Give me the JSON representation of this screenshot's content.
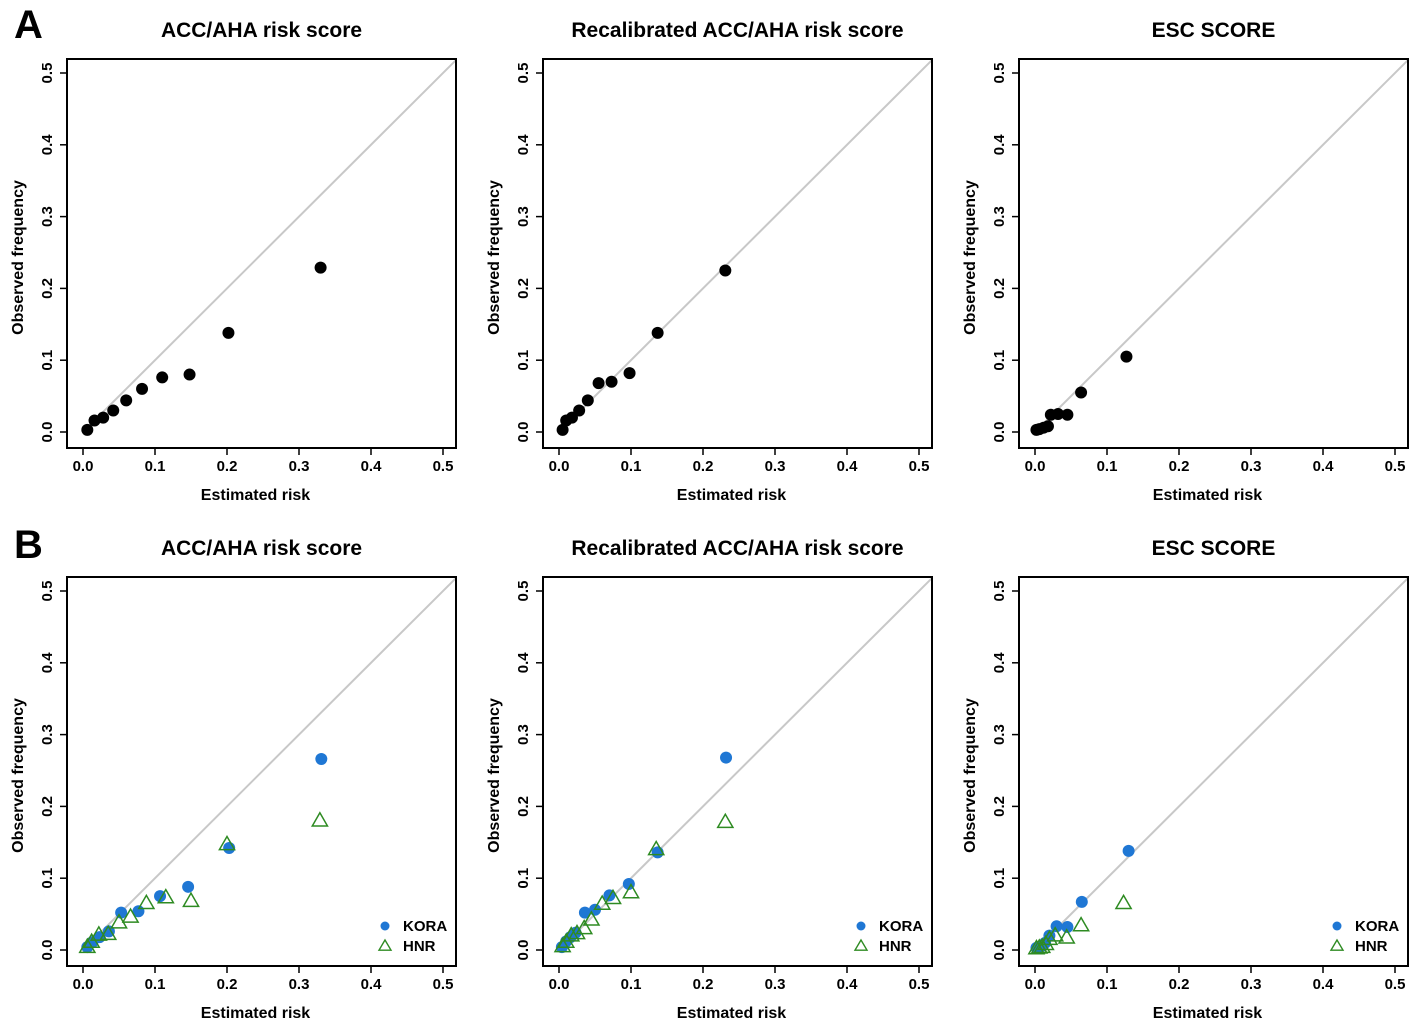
{
  "panel_labels": [
    "A",
    "B"
  ],
  "colors": {
    "series_row_a": "#000000",
    "kora": "#1f77d4",
    "hnr": "#2e8b22",
    "diagonal": "#c8c8c8",
    "frame": "#000000"
  },
  "chart_data": [
    {
      "type": "scatter",
      "title": "ACC/AHA risk score",
      "xlabel": "Estimated risk",
      "ylabel": "Observed frequency",
      "xlim": [
        0,
        0.5
      ],
      "ylim": [
        0,
        0.5
      ],
      "xticks": [
        "0.0",
        "0.1",
        "0.2",
        "0.3",
        "0.4",
        "0.5"
      ],
      "yticks": [
        "0.0",
        "0.1",
        "0.2",
        "0.3",
        "0.4",
        "0.5"
      ],
      "reference_line": "diagonal y = x",
      "grid": false,
      "series": [
        {
          "marker": "filled-circle",
          "color": "#000000",
          "points": [
            [
              0.006,
              0.003
            ],
            [
              0.016,
              0.016
            ],
            [
              0.028,
              0.02
            ],
            [
              0.042,
              0.03
            ],
            [
              0.06,
              0.044
            ],
            [
              0.082,
              0.06
            ],
            [
              0.11,
              0.076
            ],
            [
              0.148,
              0.08
            ],
            [
              0.202,
              0.138
            ],
            [
              0.33,
              0.229
            ]
          ]
        }
      ]
    },
    {
      "type": "scatter",
      "title": "Recalibrated ACC/AHA risk score",
      "xlabel": "Estimated risk",
      "ylabel": "Observed frequency",
      "xlim": [
        0,
        0.5
      ],
      "ylim": [
        0,
        0.5
      ],
      "xticks": [
        "0.0",
        "0.1",
        "0.2",
        "0.3",
        "0.4",
        "0.5"
      ],
      "yticks": [
        "0.0",
        "0.1",
        "0.2",
        "0.3",
        "0.4",
        "0.5"
      ],
      "reference_line": "diagonal y = x",
      "grid": false,
      "series": [
        {
          "marker": "filled-circle",
          "color": "#000000",
          "points": [
            [
              0.005,
              0.003
            ],
            [
              0.01,
              0.016
            ],
            [
              0.018,
              0.02
            ],
            [
              0.028,
              0.03
            ],
            [
              0.04,
              0.044
            ],
            [
              0.055,
              0.068
            ],
            [
              0.073,
              0.07
            ],
            [
              0.098,
              0.082
            ],
            [
              0.137,
              0.138
            ],
            [
              0.231,
              0.225
            ]
          ]
        }
      ]
    },
    {
      "type": "scatter",
      "title": "ESC SCORE",
      "xlabel": "Estimated risk",
      "ylabel": "Observed frequency",
      "xlim": [
        0,
        0.5
      ],
      "ylim": [
        0,
        0.5
      ],
      "xticks": [
        "0.0",
        "0.1",
        "0.2",
        "0.3",
        "0.4",
        "0.5"
      ],
      "yticks": [
        "0.0",
        "0.1",
        "0.2",
        "0.3",
        "0.4",
        "0.5"
      ],
      "reference_line": "diagonal y = x",
      "grid": false,
      "series": [
        {
          "marker": "filled-circle",
          "color": "#000000",
          "points": [
            [
              0.002,
              0.003
            ],
            [
              0.006,
              0.004
            ],
            [
              0.012,
              0.006
            ],
            [
              0.018,
              0.008
            ],
            [
              0.022,
              0.024
            ],
            [
              0.032,
              0.025
            ],
            [
              0.045,
              0.024
            ],
            [
              0.064,
              0.055
            ],
            [
              0.127,
              0.105
            ]
          ]
        }
      ]
    },
    {
      "type": "scatter",
      "title": "ACC/AHA risk score",
      "xlabel": "Estimated risk",
      "ylabel": "Observed frequency",
      "xlim": [
        0,
        0.5
      ],
      "ylim": [
        0,
        0.5
      ],
      "xticks": [
        "0.0",
        "0.1",
        "0.2",
        "0.3",
        "0.4",
        "0.5"
      ],
      "yticks": [
        "0.0",
        "0.1",
        "0.2",
        "0.3",
        "0.4",
        "0.5"
      ],
      "reference_line": "diagonal y = x",
      "grid": false,
      "legend": {
        "placement": "bottom-right"
      },
      "series": [
        {
          "name": "KORA",
          "marker": "filled-circle",
          "color": "#1f77d4",
          "points": [
            [
              0.006,
              0.004
            ],
            [
              0.013,
              0.011
            ],
            [
              0.023,
              0.018
            ],
            [
              0.036,
              0.026
            ],
            [
              0.053,
              0.052
            ],
            [
              0.077,
              0.054
            ],
            [
              0.107,
              0.075
            ],
            [
              0.146,
              0.088
            ],
            [
              0.203,
              0.142
            ],
            [
              0.331,
              0.266
            ]
          ]
        },
        {
          "name": "HNR",
          "marker": "open-triangle",
          "color": "#2e8b22",
          "points": [
            [
              0.006,
              0.004
            ],
            [
              0.012,
              0.011
            ],
            [
              0.022,
              0.021
            ],
            [
              0.035,
              0.022
            ],
            [
              0.05,
              0.038
            ],
            [
              0.066,
              0.046
            ],
            [
              0.088,
              0.065
            ],
            [
              0.115,
              0.073
            ],
            [
              0.15,
              0.068
            ],
            [
              0.2,
              0.147
            ],
            [
              0.329,
              0.18
            ]
          ]
        }
      ]
    },
    {
      "type": "scatter",
      "title": "Recalibrated ACC/AHA risk score",
      "xlabel": "Estimated risk",
      "ylabel": "Observed frequency",
      "xlim": [
        0,
        0.5
      ],
      "ylim": [
        0,
        0.5
      ],
      "xticks": [
        "0.0",
        "0.1",
        "0.2",
        "0.3",
        "0.4",
        "0.5"
      ],
      "yticks": [
        "0.0",
        "0.1",
        "0.2",
        "0.3",
        "0.4",
        "0.5"
      ],
      "reference_line": "diagonal y = x",
      "grid": false,
      "legend": {
        "placement": "bottom-right"
      },
      "series": [
        {
          "name": "KORA",
          "marker": "filled-circle",
          "color": "#1f77d4",
          "points": [
            [
              0.004,
              0.004
            ],
            [
              0.01,
              0.012
            ],
            [
              0.016,
              0.018
            ],
            [
              0.023,
              0.024
            ],
            [
              0.036,
              0.052
            ],
            [
              0.05,
              0.056
            ],
            [
              0.07,
              0.076
            ],
            [
              0.097,
              0.092
            ],
            [
              0.137,
              0.136
            ],
            [
              0.232,
              0.268
            ]
          ]
        },
        {
          "name": "HNR",
          "marker": "open-triangle",
          "color": "#2e8b22",
          "points": [
            [
              0.005,
              0.005
            ],
            [
              0.01,
              0.011
            ],
            [
              0.017,
              0.02
            ],
            [
              0.025,
              0.023
            ],
            [
              0.035,
              0.03
            ],
            [
              0.045,
              0.042
            ],
            [
              0.06,
              0.064
            ],
            [
              0.075,
              0.072
            ],
            [
              0.1,
              0.08
            ],
            [
              0.135,
              0.14
            ],
            [
              0.231,
              0.178
            ]
          ]
        }
      ]
    },
    {
      "type": "scatter",
      "title": "ESC SCORE",
      "xlabel": "Estimated risk",
      "ylabel": "Observed frequency",
      "xlim": [
        0,
        0.5
      ],
      "ylim": [
        0,
        0.5
      ],
      "xticks": [
        "0.0",
        "0.1",
        "0.2",
        "0.3",
        "0.4",
        "0.5"
      ],
      "yticks": [
        "0.0",
        "0.1",
        "0.2",
        "0.3",
        "0.4",
        "0.5"
      ],
      "reference_line": "diagonal y = x",
      "grid": false,
      "legend": {
        "placement": "bottom-right"
      },
      "series": [
        {
          "name": "KORA",
          "marker": "filled-circle",
          "color": "#1f77d4",
          "points": [
            [
              0.002,
              0.003
            ],
            [
              0.005,
              0.004
            ],
            [
              0.01,
              0.006
            ],
            [
              0.014,
              0.01
            ],
            [
              0.02,
              0.02
            ],
            [
              0.03,
              0.033
            ],
            [
              0.045,
              0.032
            ],
            [
              0.065,
              0.067
            ],
            [
              0.13,
              0.138
            ]
          ]
        },
        {
          "name": "HNR",
          "marker": "open-triangle",
          "color": "#2e8b22",
          "points": [
            [
              0.002,
              0.002
            ],
            [
              0.006,
              0.003
            ],
            [
              0.01,
              0.004
            ],
            [
              0.015,
              0.008
            ],
            [
              0.02,
              0.015
            ],
            [
              0.028,
              0.02
            ],
            [
              0.044,
              0.017
            ],
            [
              0.064,
              0.034
            ],
            [
              0.123,
              0.065
            ]
          ]
        }
      ]
    }
  ]
}
